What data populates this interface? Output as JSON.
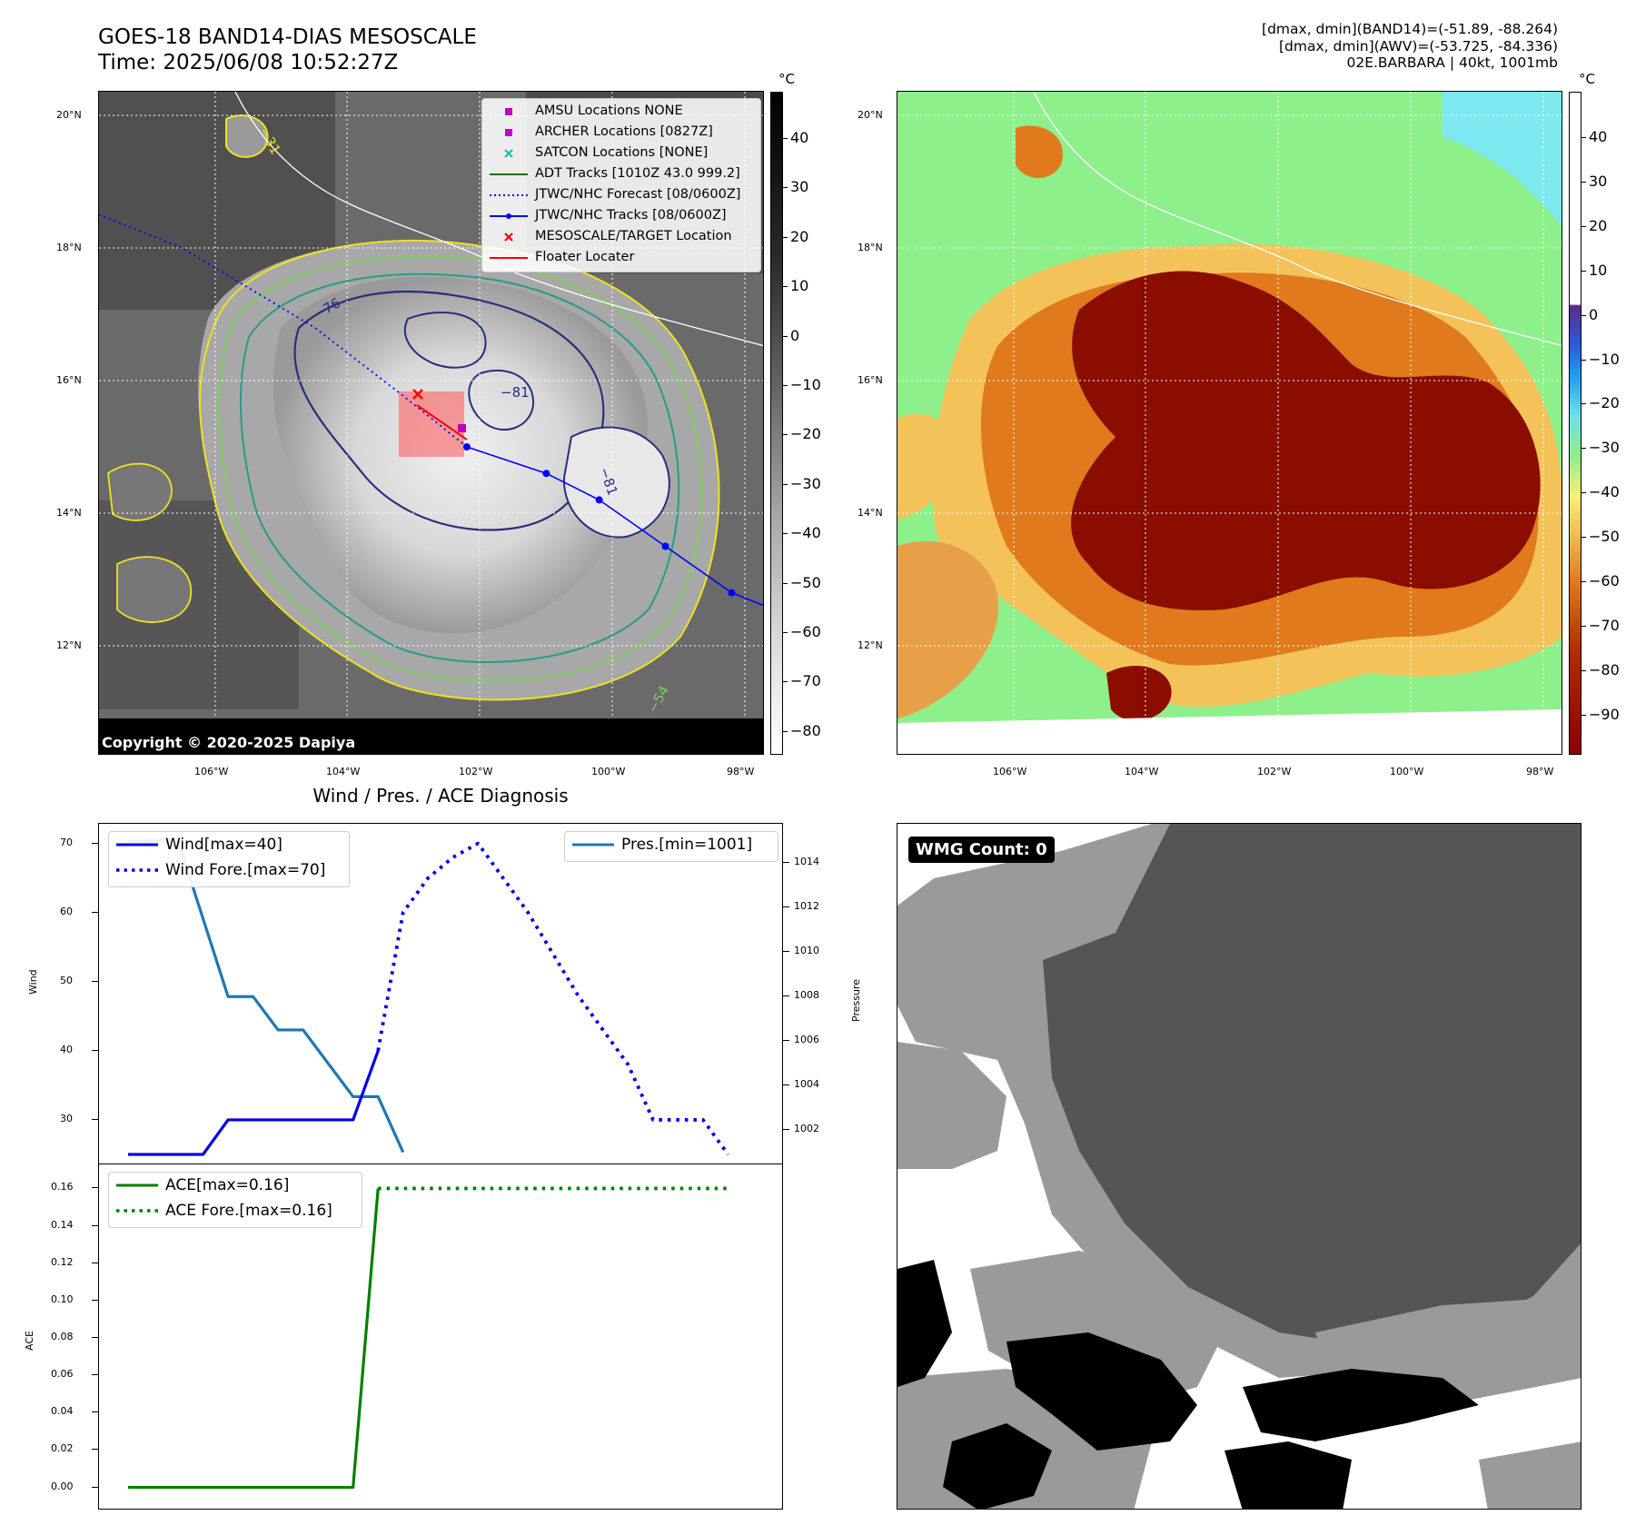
{
  "header": {
    "title_line1": "GOES-18 BAND14-DIAS MESOSCALE",
    "title_line2": "Time: 2025/06/08 10:52:27Z",
    "info_line1": "[dmax, dmin](BAND14)=(-51.89, -88.264)",
    "info_line2": "[dmax, dmin](AWV)=(-53.725, -84.336)",
    "info_line3": "02E.BARBARA | 40kt, 1001mb"
  },
  "ir_map": {
    "lat_labels": [
      "20°N",
      "18°N",
      "16°N",
      "14°N",
      "12°N"
    ],
    "lon_labels": [
      "106°W",
      "104°W",
      "102°W",
      "100°W",
      "98°W"
    ],
    "colorbar_unit": "°C",
    "colorbar_ticks": [
      "40",
      "30",
      "20",
      "10",
      "0",
      "−10",
      "−20",
      "−30",
      "−40",
      "−50",
      "−60",
      "−70",
      "−80"
    ],
    "contour_labels": [
      "−31",
      "−54",
      "−76",
      "−81"
    ],
    "copyright": "Copyright © 2020-2025 Dapiya",
    "legend": [
      {
        "label": "AMSU Locations NONE",
        "symbol": "square",
        "color": "#c000c0"
      },
      {
        "label": "ARCHER Locations [0827Z]",
        "symbol": "square",
        "color": "#c000c0"
      },
      {
        "label": "SATCON Locations [NONE]",
        "symbol": "x",
        "color": "#20b8b8"
      },
      {
        "label": "ADT Tracks [1010Z 43.0 999.2]",
        "symbol": "line",
        "color": "#007000"
      },
      {
        "label": "JTWC/NHC Forecast [08/0600Z]",
        "symbol": "dotted",
        "color": "#0000ff"
      },
      {
        "label": "JTWC/NHC Tracks [08/0600Z]",
        "symbol": "line-dot",
        "color": "#0000ff"
      },
      {
        "label": "MESOSCALE/TARGET Location",
        "symbol": "x",
        "color": "#ff0000"
      },
      {
        "label": "Floater Locater",
        "symbol": "line",
        "color": "#ff0000"
      }
    ],
    "track_points": [
      [
        -102.2,
        15.0
      ],
      [
        -101.0,
        14.6
      ],
      [
        -100.2,
        14.2
      ],
      [
        -99.2,
        13.5
      ],
      [
        -98.2,
        12.8
      ]
    ],
    "forecast_points": [
      [
        -103.2,
        15.8
      ],
      [
        -104.5,
        16.8
      ],
      [
        -106.5,
        18.0
      ],
      [
        -108.0,
        18.6
      ]
    ]
  },
  "awv_map": {
    "lat_labels": [
      "20°N",
      "18°N",
      "16°N",
      "14°N",
      "12°N"
    ],
    "lon_labels": [
      "106°W",
      "104°W",
      "102°W",
      "100°W",
      "98°W"
    ],
    "colorbar_unit": "°C",
    "colorbar_ticks": [
      "40",
      "30",
      "20",
      "10",
      "0",
      "−10",
      "−20",
      "−30",
      "−40",
      "−50",
      "−60",
      "−70",
      "−80",
      "−90"
    ]
  },
  "diag": {
    "title": "Wind / Pres. / ACE Diagnosis",
    "wind_ylabel": "Wind",
    "pres_ylabel": "Pressure",
    "ace_ylabel": "ACE",
    "wind_ticks": [
      "70",
      "60",
      "50",
      "40",
      "30"
    ],
    "pres_ticks": [
      "1014",
      "1012",
      "1010",
      "1008",
      "1006",
      "1004",
      "1002"
    ],
    "ace_ticks": [
      "0.16",
      "0.14",
      "0.12",
      "0.10",
      "0.08",
      "0.06",
      "0.04",
      "0.02",
      "0.00"
    ],
    "legend_wind": "Wind[max=40]",
    "legend_wind_fore": "Wind Fore.[max=70]",
    "legend_pres": "Pres.[min=1001]",
    "legend_ace": "ACE[max=0.16]",
    "legend_ace_fore": "ACE Fore.[max=0.16]",
    "colors": {
      "wind": "#0000ee",
      "pres": "#1f77b4",
      "ace": "#008000"
    }
  },
  "chart_data": [
    {
      "type": "line",
      "title": "Wind / Pres. / ACE Diagnosis",
      "ylabel": "Wind",
      "ylim": [
        25,
        71
      ],
      "xlim": [
        0,
        25
      ],
      "series": [
        {
          "name": "Wind[max=40]",
          "x": [
            0,
            3,
            4,
            9,
            10
          ],
          "values": [
            25,
            25,
            30,
            30,
            40
          ]
        },
        {
          "name": "Wind Fore.[max=70]",
          "x": [
            10,
            11,
            12,
            13,
            14,
            16,
            18,
            19,
            20,
            21,
            22,
            23,
            24
          ],
          "values": [
            40,
            60,
            65,
            68,
            70,
            60,
            48,
            43,
            38,
            30,
            30,
            30,
            25
          ]
        }
      ]
    },
    {
      "type": "line",
      "ylabel": "Pressure",
      "ylim": [
        1000.9,
        1015.2
      ],
      "series": [
        {
          "name": "Pres.[min=1001]",
          "x": [
            0,
            2,
            4,
            5,
            6,
            7,
            9,
            10,
            11
          ],
          "values": [
            1015,
            1015,
            1008,
            1008,
            1006.5,
            1006.5,
            1003.5,
            1003.5,
            1001
          ]
        }
      ]
    },
    {
      "type": "line",
      "ylabel": "ACE",
      "ylim": [
        -0.008,
        0.168
      ],
      "series": [
        {
          "name": "ACE[max=0.16]",
          "x": [
            0,
            9,
            10
          ],
          "values": [
            0.0,
            0.0,
            0.16
          ]
        },
        {
          "name": "ACE Fore.[max=0.16]",
          "x": [
            10,
            24
          ],
          "values": [
            0.16,
            0.16
          ]
        }
      ]
    }
  ],
  "wmg": {
    "label": "WMG Count: 0"
  }
}
